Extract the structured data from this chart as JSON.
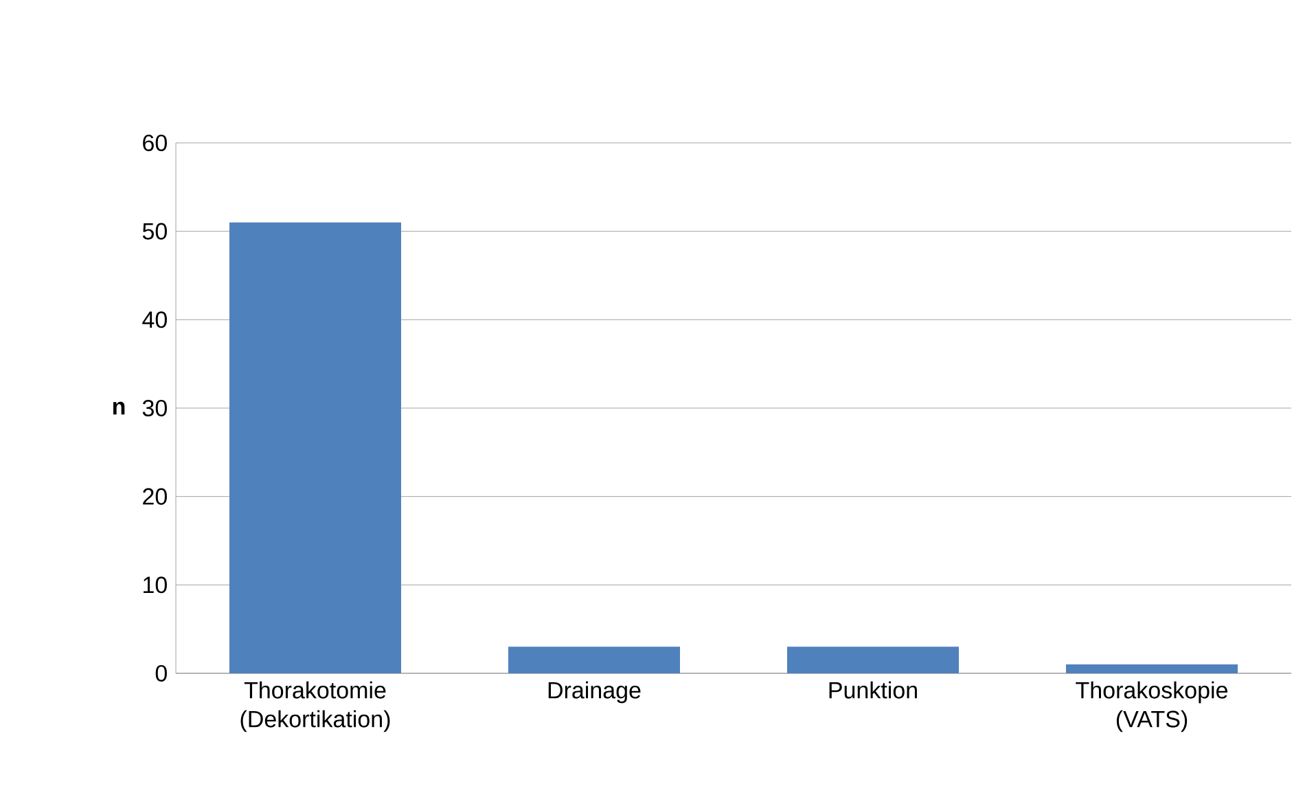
{
  "chart_data": {
    "type": "bar",
    "ylabel": "n",
    "categories": [
      "Thorakotomie (Dekortikation)",
      "Drainage",
      "Punktion",
      "Thorakoskopie (VATS)"
    ],
    "values": [
      51,
      3,
      3,
      1
    ],
    "color": "#4f81bd",
    "ylim": [
      0,
      60
    ],
    "yticks": [
      0,
      10,
      20,
      30,
      40,
      50,
      60
    ],
    "grid": "y"
  }
}
